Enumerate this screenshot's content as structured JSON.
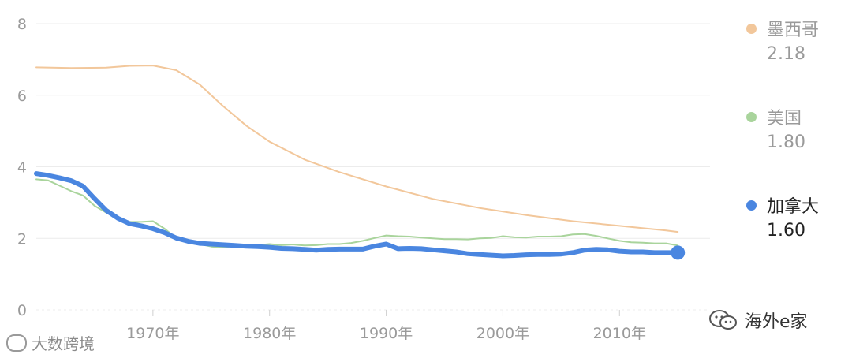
{
  "chart_data": {
    "type": "line",
    "title": "",
    "xlabel": "",
    "ylabel": "",
    "ylim": [
      0,
      8
    ],
    "xlim": [
      1960,
      2016
    ],
    "y_ticks": [
      "0",
      "2",
      "4",
      "6",
      "8"
    ],
    "x_ticks": [
      {
        "value": 1970,
        "label": "1970年"
      },
      {
        "value": 1980,
        "label": "1980年"
      },
      {
        "value": 1990,
        "label": "1990年"
      },
      {
        "value": 2000,
        "label": "2000年"
      },
      {
        "value": 2010,
        "label": "2010年"
      }
    ],
    "grid": true,
    "legend_position": "right",
    "series": [
      {
        "name": "墨西哥",
        "latest_value": "2.18",
        "color": "#f2c79b",
        "active": false,
        "x": [
          1960,
          1963,
          1966,
          1968,
          1970,
          1972,
          1974,
          1976,
          1978,
          1980,
          1983,
          1986,
          1990,
          1994,
          1998,
          2002,
          2006,
          2010,
          2014,
          2015
        ],
        "y": [
          6.78,
          6.76,
          6.77,
          6.82,
          6.83,
          6.7,
          6.3,
          5.7,
          5.15,
          4.7,
          4.2,
          3.85,
          3.45,
          3.1,
          2.85,
          2.65,
          2.48,
          2.35,
          2.22,
          2.18
        ]
      },
      {
        "name": "美国",
        "latest_value": "1.80",
        "color": "#a9d49c",
        "active": false,
        "x": [
          1960,
          1961,
          1962,
          1963,
          1964,
          1965,
          1966,
          1967,
          1968,
          1969,
          1970,
          1971,
          1972,
          1973,
          1974,
          1975,
          1976,
          1977,
          1978,
          1979,
          1980,
          1981,
          1982,
          1983,
          1984,
          1985,
          1986,
          1987,
          1988,
          1989,
          1990,
          1991,
          1992,
          1993,
          1994,
          1995,
          1996,
          1997,
          1998,
          1999,
          2000,
          2001,
          2002,
          2003,
          2004,
          2005,
          2006,
          2007,
          2008,
          2009,
          2010,
          2011,
          2012,
          2013,
          2014,
          2015
        ],
        "y": [
          3.65,
          3.62,
          3.47,
          3.32,
          3.2,
          2.91,
          2.72,
          2.56,
          2.46,
          2.46,
          2.48,
          2.27,
          2.01,
          1.88,
          1.84,
          1.77,
          1.74,
          1.79,
          1.76,
          1.81,
          1.84,
          1.81,
          1.83,
          1.8,
          1.81,
          1.84,
          1.84,
          1.87,
          1.93,
          2.01,
          2.08,
          2.06,
          2.05,
          2.02,
          2.0,
          1.98,
          1.98,
          1.97,
          2.0,
          2.01,
          2.06,
          2.03,
          2.02,
          2.05,
          2.05,
          2.06,
          2.11,
          2.12,
          2.07,
          2.0,
          1.93,
          1.89,
          1.88,
          1.86,
          1.86,
          1.8
        ]
      },
      {
        "name": "加拿大",
        "latest_value": "1.60",
        "color": "#4a86e0",
        "active": true,
        "x": [
          1960,
          1961,
          1962,
          1963,
          1964,
          1965,
          1966,
          1967,
          1968,
          1969,
          1970,
          1971,
          1972,
          1973,
          1974,
          1975,
          1976,
          1977,
          1978,
          1979,
          1980,
          1981,
          1982,
          1983,
          1984,
          1985,
          1986,
          1987,
          1988,
          1989,
          1990,
          1991,
          1992,
          1993,
          1994,
          1995,
          1996,
          1997,
          1998,
          1999,
          2000,
          2001,
          2002,
          2003,
          2004,
          2005,
          2006,
          2007,
          2008,
          2009,
          2010,
          2011,
          2012,
          2013,
          2014,
          2015
        ],
        "y": [
          3.81,
          3.76,
          3.69,
          3.61,
          3.46,
          3.11,
          2.78,
          2.56,
          2.41,
          2.35,
          2.27,
          2.16,
          2.01,
          1.92,
          1.86,
          1.84,
          1.82,
          1.8,
          1.78,
          1.77,
          1.75,
          1.72,
          1.71,
          1.69,
          1.67,
          1.69,
          1.7,
          1.7,
          1.7,
          1.78,
          1.84,
          1.71,
          1.72,
          1.71,
          1.68,
          1.65,
          1.62,
          1.57,
          1.55,
          1.53,
          1.51,
          1.52,
          1.54,
          1.55,
          1.55,
          1.56,
          1.6,
          1.67,
          1.69,
          1.68,
          1.64,
          1.62,
          1.62,
          1.6,
          1.6,
          1.6
        ]
      }
    ]
  },
  "watermarks": {
    "left": "大数跨境",
    "right": "海外e家"
  }
}
